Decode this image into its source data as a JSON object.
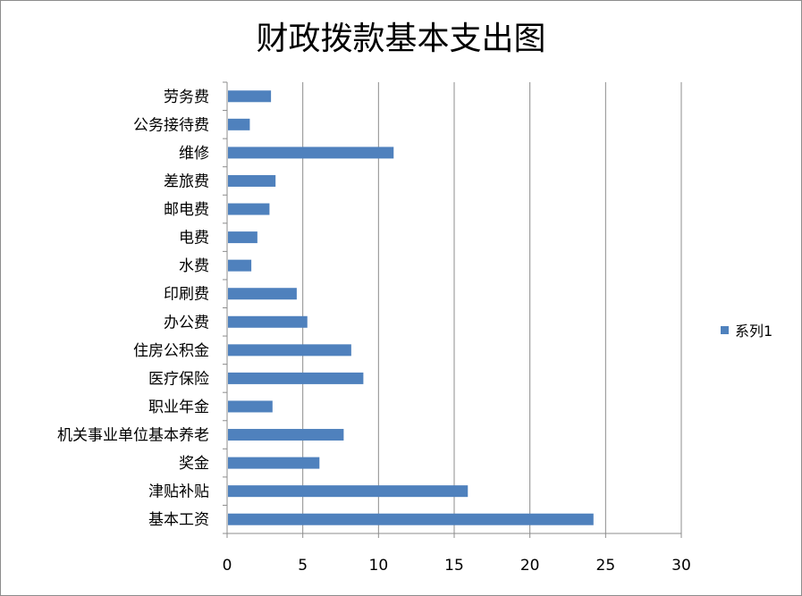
{
  "chart_data": {
    "type": "bar",
    "orientation": "horizontal",
    "title": "财政拨款基本支出图",
    "categories": [
      "基本工资",
      "津贴补贴",
      "奖金",
      "机关事业单位基本养老",
      "职业年金",
      "医疗保险",
      "住房公积金",
      "办公费",
      "印刷费",
      "水费",
      "电费",
      "邮电费",
      "差旅费",
      "维修",
      "公务接待费",
      "劳务费"
    ],
    "series": [
      {
        "name": "系列1",
        "values": [
          24.2,
          15.9,
          6.1,
          7.7,
          3.0,
          9.0,
          8.2,
          5.3,
          4.6,
          1.6,
          2.0,
          2.8,
          3.2,
          11.0,
          1.5,
          2.9
        ]
      }
    ],
    "xlim": [
      0,
      30
    ],
    "xticks": [
      "0",
      "5",
      "10",
      "15",
      "20",
      "25",
      "30"
    ],
    "grid": true,
    "legend_position": "right",
    "colors": {
      "bar": "#4f81bd",
      "grid": "#8c8c8c",
      "axis": "#8c8c8c"
    }
  }
}
